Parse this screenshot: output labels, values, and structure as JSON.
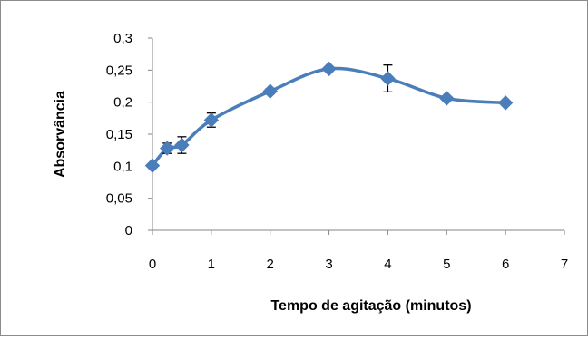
{
  "chart_data": {
    "type": "line",
    "xlabel": "Tempo de agitação (minutos)",
    "ylabel": "Absorvância",
    "xlim": [
      0,
      7
    ],
    "ylim": [
      0,
      0.3
    ],
    "x_ticks": [
      0,
      1,
      2,
      3,
      4,
      5,
      6,
      7
    ],
    "y_ticks": [
      0,
      0.05,
      0.1,
      0.15,
      0.2,
      0.25,
      0.3
    ],
    "x_tick_labels": [
      "0",
      "1",
      "2",
      "3",
      "4",
      "5",
      "6",
      "7"
    ],
    "y_tick_labels": [
      "0",
      "0,05",
      "0,1",
      "0,15",
      "0,2",
      "0,25",
      "0,3"
    ],
    "grid": false,
    "legend": "none",
    "smooth": true,
    "marker": "diamond",
    "series": [
      {
        "color": "#4a7ebb",
        "points": [
          {
            "x": 0,
            "y": 0.101,
            "err": 0
          },
          {
            "x": 0.25,
            "y": 0.128,
            "err": 0.008
          },
          {
            "x": 0.5,
            "y": 0.133,
            "err": 0.013
          },
          {
            "x": 1,
            "y": 0.172,
            "err": 0.011
          },
          {
            "x": 2,
            "y": 0.217,
            "err": 0.004
          },
          {
            "x": 3,
            "y": 0.252,
            "err": 0
          },
          {
            "x": 4,
            "y": 0.237,
            "err": 0.021
          },
          {
            "x": 5,
            "y": 0.206,
            "err": 0
          },
          {
            "x": 6,
            "y": 0.199,
            "err": 0
          }
        ]
      }
    ]
  }
}
